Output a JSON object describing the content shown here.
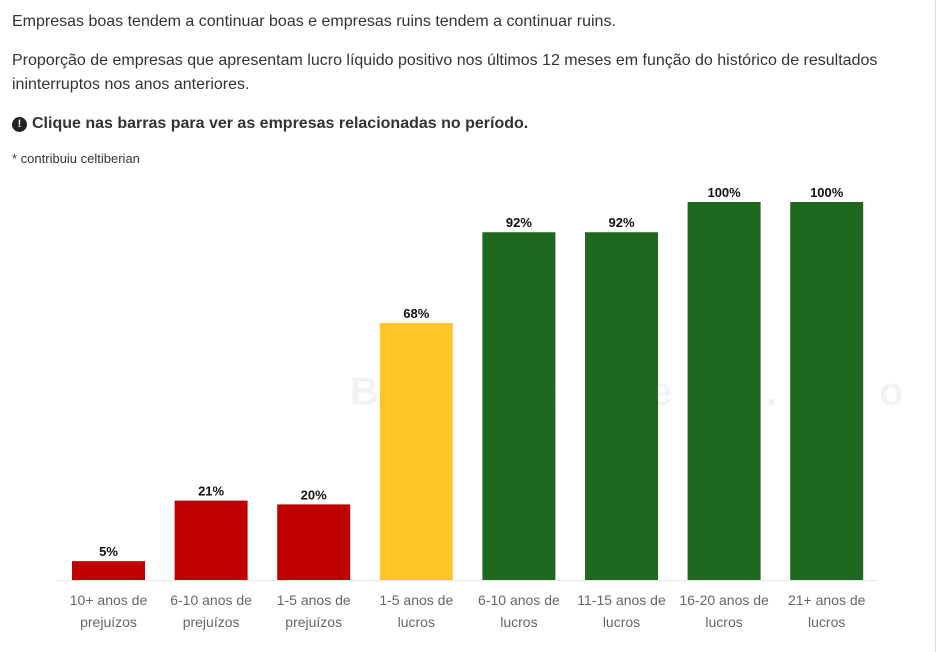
{
  "header": {
    "intro": "Empresas boas tendem a continuar boas e empresas ruins tendem a continuar ruins.",
    "description": "Proporção de empresas que apresentam lucro líquido positivo nos últimos 12 meses em função do histórico de resultados ininterruptos nos anos anteriores.",
    "hint_icon": "exclamation-circle-icon",
    "hint_icon_glyph": "!",
    "hint": "Clique nas barras para ver as empresas relacionadas no período.",
    "credit": "* contribuiu celtiberian"
  },
  "watermark": "Bastter.com",
  "colors": {
    "loss": "#c00000",
    "neutral": "#ffc425",
    "profit": "#1e6820",
    "label": "#666666",
    "value_label": "#111111",
    "baseline": "#e6e6e6"
  },
  "chart_data": {
    "type": "bar",
    "title": "",
    "xlabel": "",
    "ylabel": "",
    "ylim": [
      0,
      100
    ],
    "grid": false,
    "legend": "none",
    "categories": [
      [
        "10+ anos de",
        "prejuízos"
      ],
      [
        "6-10 anos de",
        "prejuízos"
      ],
      [
        "1-5 anos de",
        "prejuízos"
      ],
      [
        "1-5 anos de",
        "lucros"
      ],
      [
        "6-10 anos de",
        "lucros"
      ],
      [
        "11-15 anos de",
        "lucros"
      ],
      [
        "16-20 anos de",
        "lucros"
      ],
      [
        "21+ anos de",
        "lucros"
      ]
    ],
    "values": [
      5,
      21,
      20,
      68,
      92,
      92,
      100,
      100
    ],
    "value_labels": [
      "5%",
      "21%",
      "20%",
      "68%",
      "92%",
      "92%",
      "100%",
      "100%"
    ],
    "bar_color_keys": [
      "loss",
      "loss",
      "loss",
      "neutral",
      "profit",
      "profit",
      "profit",
      "profit"
    ]
  }
}
